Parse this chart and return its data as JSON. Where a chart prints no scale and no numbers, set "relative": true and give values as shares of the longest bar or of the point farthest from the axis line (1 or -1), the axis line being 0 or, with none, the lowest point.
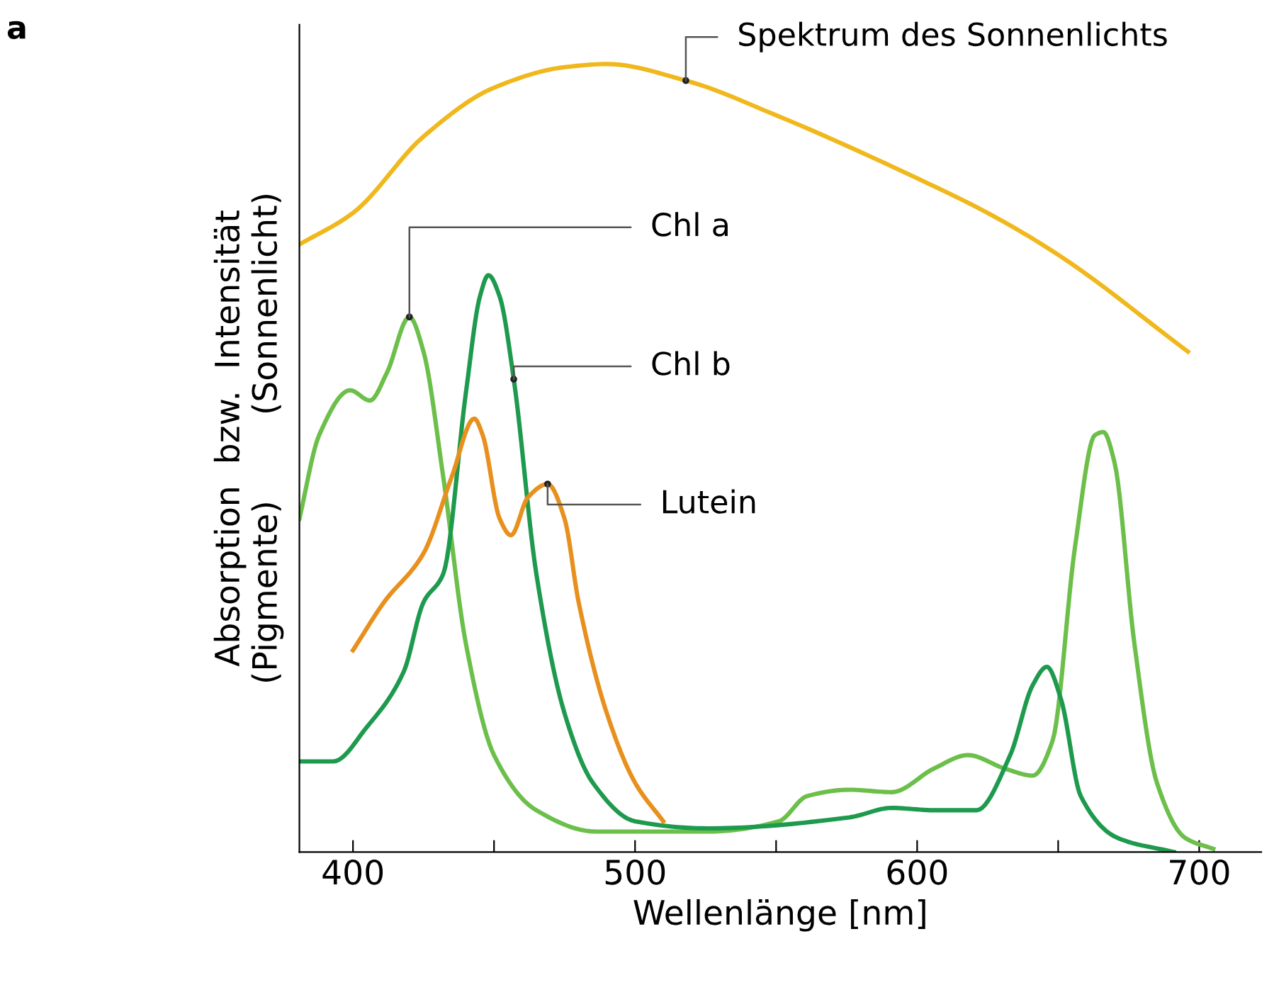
{
  "chart_data": {
    "type": "line",
    "relative": true,
    "xlabel": "Wellenlänge [nm]",
    "ylabel": "Absorption  bzw.  Intensität\n(Pigmente)        (Sonnenlicht)",
    "xlim": [
      381,
      722
    ],
    "xticks": [
      400,
      {
        "value": 450,
        "label": null
      },
      500,
      {
        "value": 550,
        "label": null
      },
      600,
      {
        "value": 650,
        "label": null
      },
      700
    ],
    "grid": false,
    "legend": false,
    "marker": "none",
    "line_style": "solid",
    "annotations": [
      "a"
    ],
    "series": [
      {
        "name": "Spektrum des Sonnenlichts",
        "color": "#f0b81c",
        "x": [
          381,
          400,
          425,
          450,
          475,
          490,
          518,
          550,
          600,
          625,
          650,
          696
        ],
        "values": [
          0.771,
          0.811,
          0.908,
          0.97,
          0.996,
          1.0,
          0.979,
          0.935,
          0.855,
          0.811,
          0.758,
          0.635
        ]
      },
      {
        "name": "Chl a",
        "color": "#6cbf4a",
        "x": [
          381,
          388,
          399,
          406,
          412,
          420,
          425,
          432,
          440,
          450,
          465,
          486,
          526,
          551,
          561,
          576,
          591,
          606,
          618,
          631,
          641,
          648,
          656,
          663,
          666,
          670,
          677,
          685,
          695,
          705
        ],
        "values": [
          0.423,
          0.529,
          0.586,
          0.573,
          0.608,
          0.679,
          0.635,
          0.476,
          0.265,
          0.123,
          0.053,
          0.026,
          0.026,
          0.039,
          0.071,
          0.079,
          0.076,
          0.106,
          0.123,
          0.106,
          0.097,
          0.141,
          0.388,
          0.529,
          0.533,
          0.494,
          0.265,
          0.088,
          0.018,
          0.004
        ]
      },
      {
        "name": "Chl b",
        "color": "#1e9a4e",
        "x": [
          381,
          393,
          405,
          418,
          425,
          432,
          440,
          445,
          448,
          452,
          457,
          465,
          475,
          485,
          500,
          526,
          576,
          591,
          606,
          621,
          633,
          641,
          646,
          651,
          658,
          671,
          691
        ],
        "values": [
          0.115,
          0.115,
          0.159,
          0.229,
          0.317,
          0.353,
          0.582,
          0.705,
          0.732,
          0.705,
          0.6,
          0.353,
          0.176,
          0.088,
          0.039,
          0.03,
          0.044,
          0.056,
          0.053,
          0.053,
          0.123,
          0.212,
          0.235,
          0.194,
          0.071,
          0.018,
          0.0
        ]
      },
      {
        "name": "Lutein",
        "color": "#e8901e",
        "x": [
          400,
          411,
          425,
          435,
          443,
          446,
          452,
          456,
          462,
          469,
          475,
          480,
          490,
          500,
          510
        ],
        "values": [
          0.256,
          0.317,
          0.379,
          0.476,
          0.55,
          0.529,
          0.423,
          0.402,
          0.45,
          0.467,
          0.423,
          0.317,
          0.176,
          0.088,
          0.039
        ]
      }
    ]
  }
}
